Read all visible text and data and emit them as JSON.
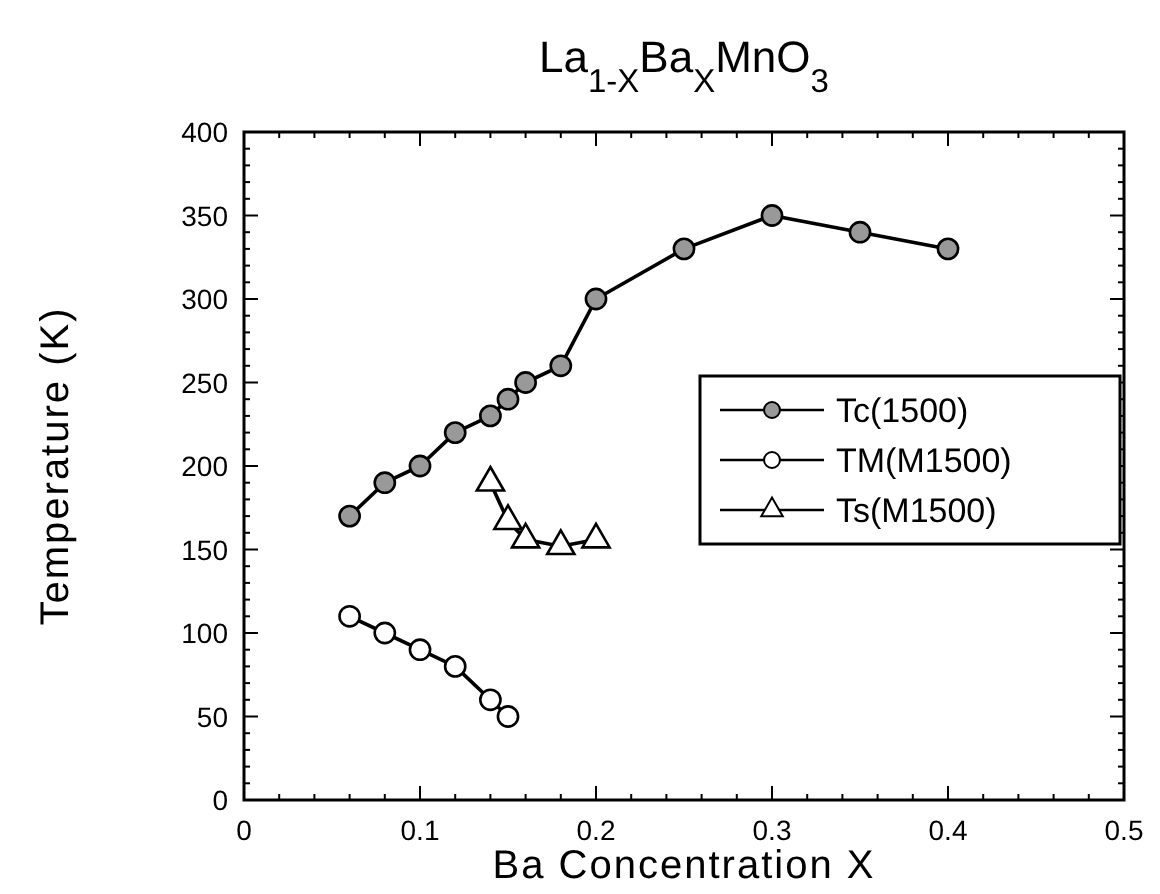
{
  "chart_data": {
    "type": "line",
    "title": "La$_{1-X}$Ba$_{X}$MnO$_{3}$",
    "xlabel": "Ba Concentration X",
    "ylabel": "Temperature (K)",
    "xlim": [
      0,
      0.5
    ],
    "xticks": [
      0,
      0.1,
      0.2,
      0.3,
      0.4,
      0.5
    ],
    "ylim": [
      0,
      400
    ],
    "yticks": [
      0,
      50,
      100,
      150,
      200,
      250,
      300,
      350,
      400
    ],
    "grid": false,
    "legend": "right",
    "line_style": "solid",
    "series": [
      {
        "name": "Tc(1500)",
        "color": "#000000",
        "marker": "circle",
        "x": [
          0.06,
          0.08,
          0.1,
          0.12,
          0.14,
          0.15,
          0.16,
          0.18,
          0.2,
          0.25,
          0.3,
          0.35,
          0.4
        ],
        "values": [
          170,
          190,
          200,
          220,
          230,
          240,
          250,
          260,
          300,
          330,
          350,
          340,
          330
        ]
      },
      {
        "name": "TM(M1500)",
        "color": "#000000",
        "marker": "circle",
        "x": [
          0.06,
          0.08,
          0.1,
          0.12,
          0.14,
          0.15
        ],
        "values": [
          110,
          100,
          90,
          80,
          60,
          50
        ]
      },
      {
        "name": "Ts(M1500)",
        "color": "#000000",
        "marker": "triangle",
        "x": [
          0.14,
          0.15,
          0.16,
          0.18,
          0.2
        ],
        "values": [
          190,
          167,
          156,
          152,
          156
        ]
      }
    ]
  }
}
